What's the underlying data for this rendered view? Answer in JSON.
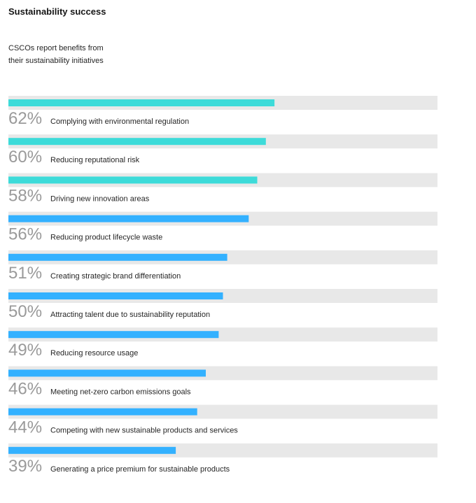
{
  "header": {
    "title": "Sustainability success",
    "subtitle": "CSCOs report benefits from their sustainability initiatives"
  },
  "colors": {
    "track": "#e8e8e8",
    "teal": "#3ddbd9",
    "blue": "#33b1ff"
  },
  "chart_data": {
    "type": "bar",
    "orientation": "horizontal",
    "title": "Sustainability success",
    "subtitle": "CSCOs report benefits from their sustainability initiatives",
    "xlim": [
      0,
      100
    ],
    "unit": "%",
    "categories": [
      "Complying with environmental regulation",
      "Reducing reputational risk",
      "Driving new innovation areas",
      "Reducing product lifecycle waste",
      "Creating strategic brand differentiation",
      "Attracting talent due to sustainability reputation",
      "Reducing resource usage",
      "Meeting net-zero carbon emissions goals",
      "Competing with new sustainable products and services",
      "Generating a price premium for sustainable products"
    ],
    "values": [
      62,
      60,
      58,
      56,
      51,
      50,
      49,
      46,
      44,
      39
    ],
    "value_labels": [
      "62%",
      "60%",
      "58%",
      "56%",
      "51%",
      "50%",
      "49%",
      "46%",
      "44%",
      "39%"
    ],
    "bar_colors": [
      "teal",
      "teal",
      "teal",
      "blue",
      "blue",
      "blue",
      "blue",
      "blue",
      "blue",
      "blue"
    ]
  }
}
